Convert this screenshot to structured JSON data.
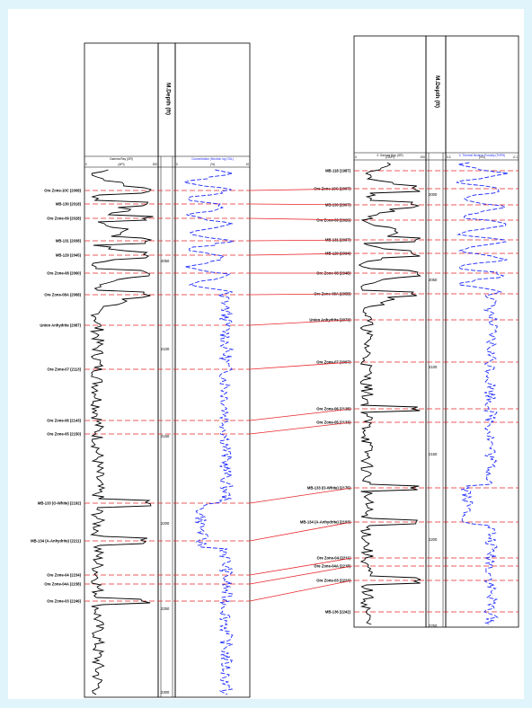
{
  "colors": {
    "page_bg": "#dff4fb",
    "paper": "#ffffff",
    "gamma_curve": "#000000",
    "right_curve": "#1f2bff",
    "correlation_line": "#e8262a"
  },
  "log1": {
    "depth_title": "M.Depth (ft)",
    "track1": {
      "title": "Gamma Ray (GR)",
      "min": "0",
      "unit": "(API)",
      "max": "300"
    },
    "track2": {
      "title": "Concentration (Neutron log CNL)",
      "min": "0",
      "unit": "(%)",
      "max": "10"
    },
    "depth_ticks": [
      "2050",
      "2100",
      "2150",
      "2200",
      "2250",
      "2300"
    ],
    "markers": [
      {
        "label": "Ore Zone-10C  (2008)"
      },
      {
        "label": "MB-130  (2018)"
      },
      {
        "label": "Ore Zone-09  (2028)"
      },
      {
        "label": "MB-131  (2038)"
      },
      {
        "label": "MB-129  (2045)"
      },
      {
        "label": "Ore Zone-08  (2060)"
      },
      {
        "label": "Ore Zone-08A  (2068)"
      },
      {
        "label": "Union Anhydrite  (2087)"
      },
      {
        "label": "Ore Zone-07  (2113)"
      },
      {
        "label": "Ore Zone-06  (2143)"
      },
      {
        "label": "Ore Zone-05  (2150)"
      },
      {
        "label": "MB-133 (O-White)  (2192)"
      },
      {
        "label": "MB-134 (A-Anhydrite)  (2211)"
      },
      {
        "label": "Ore Zone-04  (2234)"
      },
      {
        "label": "Ore Zone-04A  (2238)"
      },
      {
        "label": "Ore Zone-03  (2246)"
      }
    ]
  },
  "log2": {
    "depth_title": "M.Depth (ft)",
    "track1": {
      "title": "2. Gamma Ray (GR)",
      "min": "0",
      "unit": "(GAPI)",
      "max": "200"
    },
    "track2": {
      "title": "4. Thermal Neutron Porosity (TNPH)",
      "min": "0.3",
      "unit": "(V/V)",
      "max": "-0.1"
    },
    "depth_ticks": [
      "2000",
      "2050",
      "2100",
      "2150",
      "2200",
      "2250"
    ],
    "markers": [
      {
        "label": "MB-118  (1987)"
      },
      {
        "label": "Ore Zone-10C  (2007)"
      },
      {
        "label": "MB-130  (2007)"
      },
      {
        "label": "Ore Zone-09  (2026)"
      },
      {
        "label": "MB-131  (2037)"
      },
      {
        "label": "MB-129  (2034)"
      },
      {
        "label": "Ore Zone-08  (2048)"
      },
      {
        "label": "Ore Zone-08A  (2058)"
      },
      {
        "label": "Union Anhydrite  (2073)"
      },
      {
        "label": "Ore Zone-07  (2097)"
      },
      {
        "label": "Ore Zone-06  (2128)"
      },
      {
        "label": "Ore Zone-05  (2133)"
      },
      {
        "label": "MB-133 (O-White)  (2175)"
      },
      {
        "label": "MB-134 (A-Anhydrite)  (2193)"
      },
      {
        "label": "Ore Zone-04  (2211)"
      },
      {
        "label": "Ore Zone-04A  (2218)"
      },
      {
        "label": "Ore Zone-03  (2224)"
      },
      {
        "label": "MB-136  (2242)"
      }
    ]
  },
  "correlations": [
    [
      0,
      1
    ],
    [
      1,
      2
    ],
    [
      2,
      3
    ],
    [
      3,
      4
    ],
    [
      4,
      5
    ],
    [
      5,
      6
    ],
    [
      6,
      7
    ],
    [
      7,
      8
    ],
    [
      8,
      9
    ],
    [
      9,
      10
    ],
    [
      10,
      11
    ],
    [
      11,
      12
    ],
    [
      12,
      13
    ],
    [
      13,
      14
    ],
    [
      14,
      15
    ],
    [
      15,
      16
    ]
  ]
}
